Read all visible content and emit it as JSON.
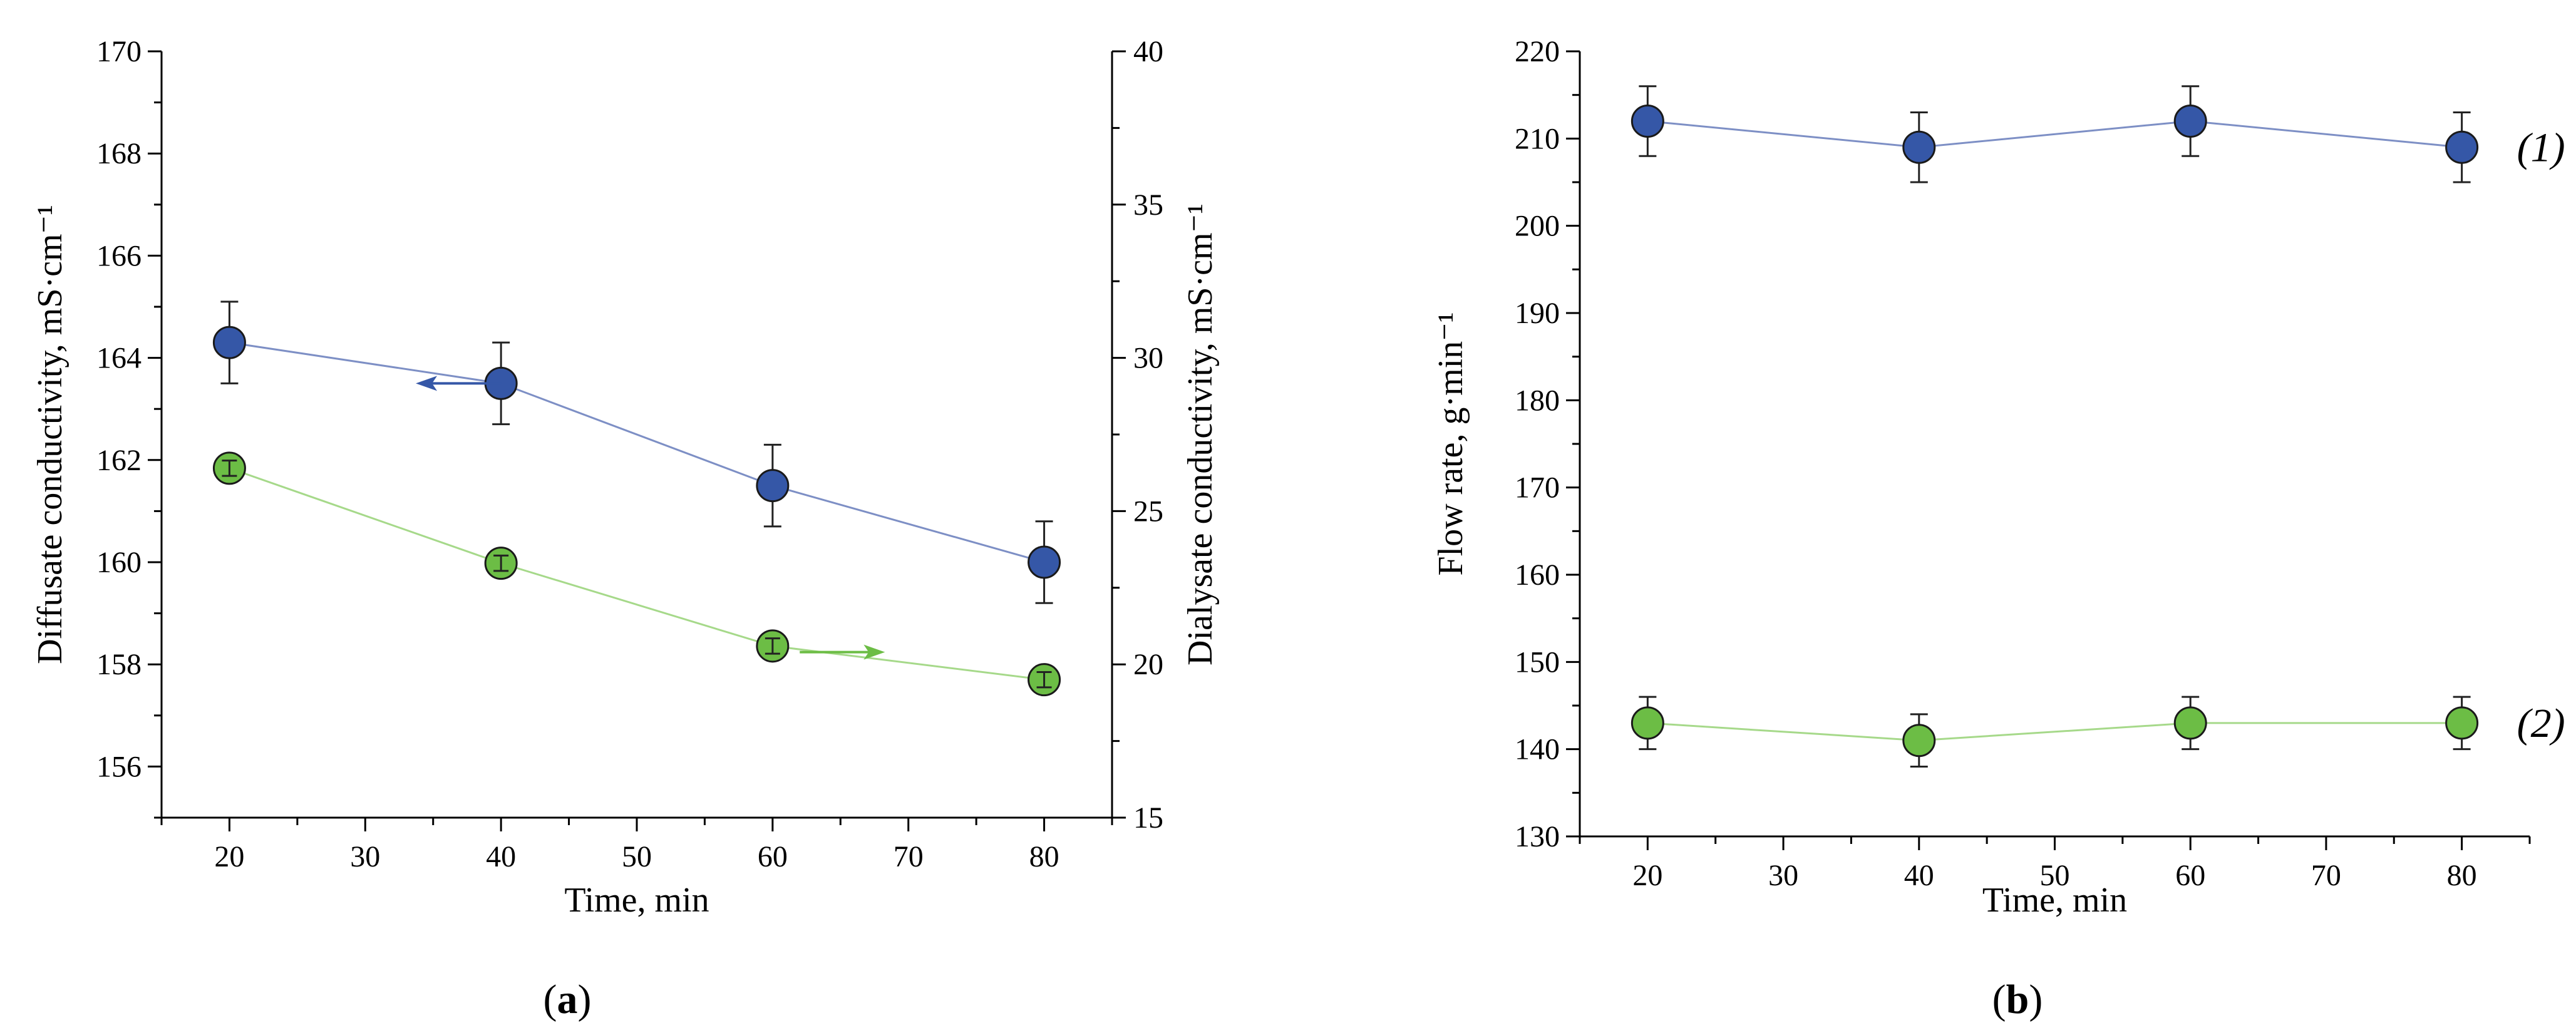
{
  "colors": {
    "blue_fill": "#3557a7",
    "blue_line": "#7d8fc5",
    "green_fill": "#6cbd45",
    "green_line": "#a6d98a",
    "marker_edge": "#1a1a1a"
  },
  "chart_data": [
    {
      "id": "a",
      "type": "line",
      "panel_label": "(a)",
      "xlabel": "Time, min",
      "ylabel": "Diffusate conductivity, mS·cm⁻¹",
      "y2label": "Dialysate conductivity, mS·cm⁻¹",
      "xlim": [
        15,
        85
      ],
      "xticks": [
        20,
        30,
        40,
        50,
        60,
        70,
        80
      ],
      "ylim": [
        155,
        170
      ],
      "yticks": [
        156,
        158,
        160,
        162,
        164,
        166,
        168,
        170
      ],
      "y2lim": [
        15,
        40
      ],
      "y2ticks": [
        15,
        20,
        25,
        30,
        35,
        40
      ],
      "x": [
        20,
        40,
        60,
        80
      ],
      "series": [
        {
          "name": "Diffusate conductivity",
          "axis": "left",
          "color": "blue",
          "values": [
            164.3,
            163.5,
            161.5,
            160.0
          ],
          "error": [
            0.8,
            0.8,
            0.8,
            0.8
          ],
          "arrow": {
            "x_from": 40,
            "x_to": 34,
            "y": 163.5,
            "direction": "left"
          }
        },
        {
          "name": "Dialysate conductivity",
          "axis": "right",
          "color": "green",
          "values": [
            26.4,
            23.3,
            20.6,
            19.5
          ],
          "error": [
            0.25,
            0.25,
            0.25,
            0.25
          ],
          "arrow": {
            "x_from": 62,
            "x_to": 68,
            "y": 20.4,
            "direction": "right"
          }
        }
      ]
    },
    {
      "id": "b",
      "type": "line",
      "panel_label": "(b)",
      "xlabel": "Time, min",
      "ylabel": "Flow rate, g·min⁻¹",
      "xlim": [
        15,
        85
      ],
      "xticks": [
        20,
        30,
        40,
        50,
        60,
        70,
        80
      ],
      "ylim": [
        130,
        220
      ],
      "yticks": [
        130,
        140,
        150,
        160,
        170,
        180,
        190,
        200,
        210,
        220
      ],
      "x": [
        20,
        40,
        60,
        80
      ],
      "series": [
        {
          "name": "(1)",
          "color": "blue",
          "values": [
            212,
            209,
            212,
            209
          ],
          "error": [
            4,
            4,
            4,
            4
          ],
          "label": "(1)"
        },
        {
          "name": "(2)",
          "color": "green",
          "values": [
            143,
            141,
            143,
            143
          ],
          "error": [
            3,
            3,
            3,
            3
          ],
          "label": "(2)"
        }
      ]
    }
  ]
}
